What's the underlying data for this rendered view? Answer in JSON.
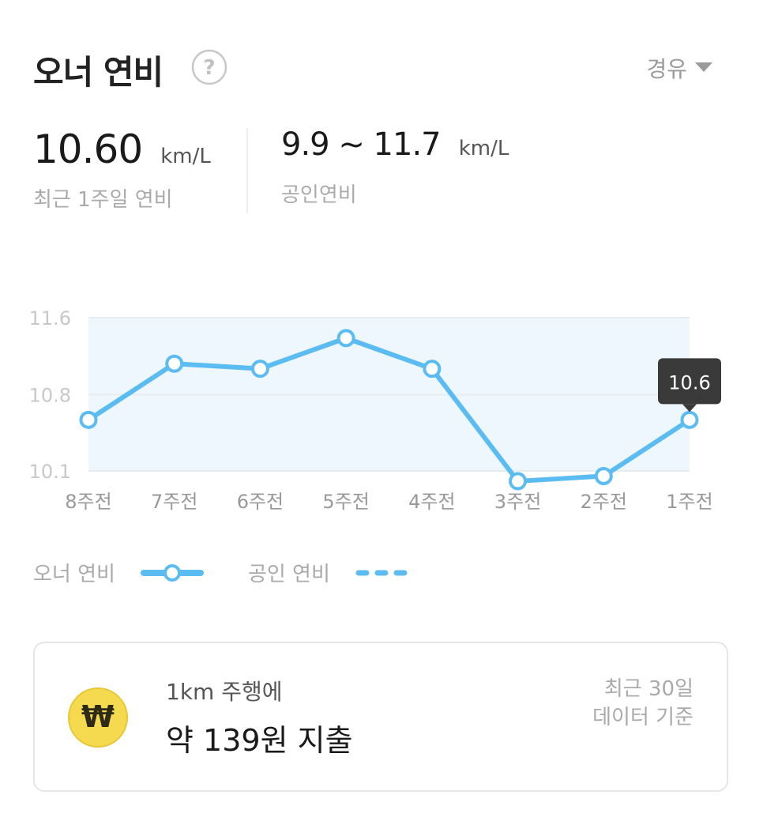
{
  "header": {
    "title": "오너 연비",
    "fuel_type": "경유"
  },
  "stats": {
    "owner": {
      "value": "10.60",
      "unit": "km/L",
      "caption": "최근 1주일 연비"
    },
    "official": {
      "value": "9.9 ~ 11.7",
      "unit": "km/L",
      "caption": "공인연비"
    }
  },
  "chart_data": {
    "type": "line",
    "categories": [
      "8주전",
      "7주전",
      "6주전",
      "5주전",
      "4주전",
      "3주전",
      "2주전",
      "1주전"
    ],
    "series": [
      {
        "name": "오너 연비",
        "values": [
          10.6,
          11.15,
          11.1,
          11.4,
          11.1,
          10.0,
          10.05,
          10.6
        ]
      }
    ],
    "ytick_labels": [
      "11.6",
      "10.8",
      "10.1"
    ],
    "ylim": [
      10.1,
      11.6
    ],
    "tooltip": {
      "category": "1주전",
      "label": "10.6"
    },
    "line_color": "#5bbcf2",
    "band_color": "#eef7fe",
    "grid": true
  },
  "legend": {
    "owner_label": "오너 연비",
    "official_label": "공인 연비"
  },
  "cost_card": {
    "line1": "1km 주행에",
    "line2": "약 139원 지출",
    "basis_line1": "최근 30일",
    "basis_line2": "데이터 기준",
    "icon_symbol": "₩"
  }
}
